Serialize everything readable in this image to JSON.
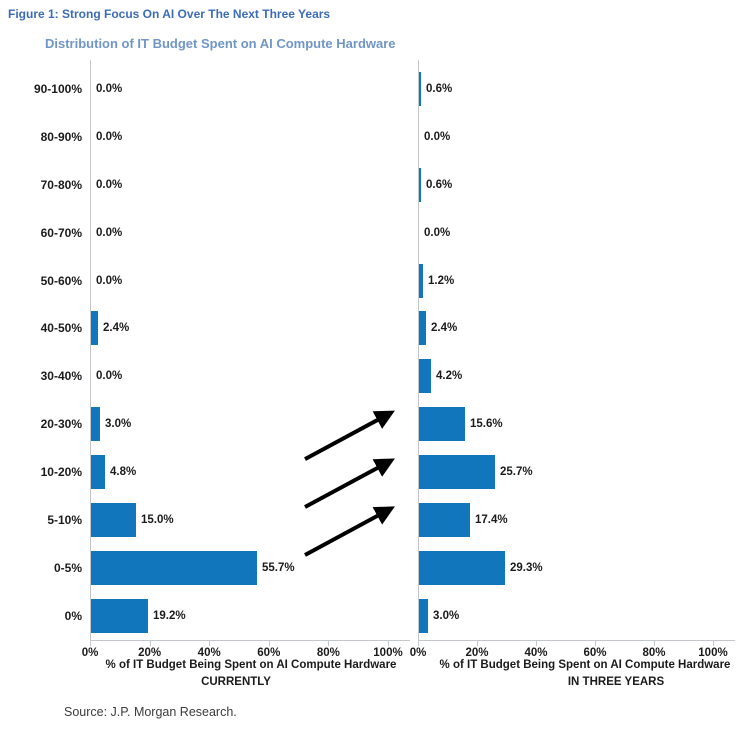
{
  "header": {
    "figure_title": "Figure 1: Strong Focus On AI Over The Next Three Years",
    "chart_title": "Distribution of IT Budget Spent on AI Compute Hardware"
  },
  "source": "Source: J.P. Morgan Research.",
  "colors": {
    "bar": "#1276bd",
    "figure_title": "#3d6cb5",
    "chart_title": "#7096c7",
    "arrow": "#000000",
    "axis_line": "#c3c7cb",
    "label_text": "#1b1b1b",
    "source_text": "#3c3c3c"
  },
  "chart_data": [
    {
      "type": "bar",
      "orientation": "horizontal",
      "side": "left",
      "categories": [
        "90-100%",
        "80-90%",
        "70-80%",
        "60-70%",
        "50-60%",
        "40-50%",
        "30-40%",
        "20-30%",
        "10-20%",
        "5-10%",
        "0-5%",
        "0%"
      ],
      "values": [
        0.0,
        0.0,
        0.0,
        0.0,
        0.0,
        2.4,
        0.0,
        3.0,
        4.8,
        15.0,
        55.7,
        19.2
      ],
      "labels": [
        "0.0%",
        "0.0%",
        "0.0%",
        "0.0%",
        "0.0%",
        "2.4%",
        "0.0%",
        "3.0%",
        "4.8%",
        "15.0%",
        "55.7%",
        "19.2%"
      ],
      "xticklabels": [
        "0%",
        "20%",
        "40%",
        "60%",
        "80%",
        "100%"
      ],
      "xlim": [
        0,
        100
      ],
      "grid": false,
      "xlabel_line1": "% of IT Budget Being Spent on AI Compute Hardware",
      "xlabel_line2": "CURRENTLY"
    },
    {
      "type": "bar",
      "orientation": "horizontal",
      "side": "right",
      "categories": [
        "90-100%",
        "80-90%",
        "70-80%",
        "60-70%",
        "50-60%",
        "40-50%",
        "30-40%",
        "20-30%",
        "10-20%",
        "5-10%",
        "0-5%",
        "0%"
      ],
      "values": [
        0.6,
        0.0,
        0.6,
        0.0,
        1.2,
        2.4,
        4.2,
        15.6,
        25.7,
        17.4,
        29.3,
        3.0
      ],
      "labels": [
        "0.6%",
        "0.0%",
        "0.6%",
        "0.0%",
        "1.2%",
        "2.4%",
        "4.2%",
        "15.6%",
        "25.7%",
        "17.4%",
        "29.3%",
        "3.0%"
      ],
      "xticklabels": [
        "0%",
        "20%",
        "40%",
        "60%",
        "80%",
        "100%"
      ],
      "xlim": [
        0,
        100
      ],
      "grid": false,
      "xlabel_line1": "% of IT Budget Being Spent on AI Compute Hardware",
      "xlabel_line2": "IN THREE YEARS"
    }
  ],
  "arrows": [
    {
      "from_category": "10-20%",
      "to_category": "20-30%"
    },
    {
      "from_category": "5-10%",
      "to_category": "10-20%"
    },
    {
      "from_category": "0-5%",
      "to_category": "5-10%"
    }
  ]
}
